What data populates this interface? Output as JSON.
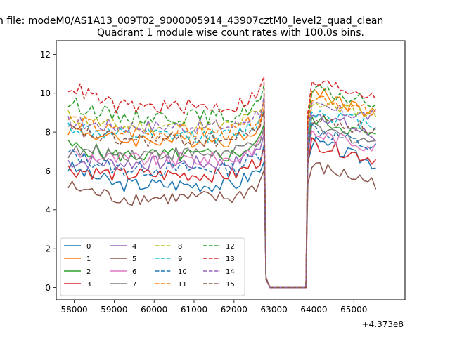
{
  "figure": {
    "suptitle": "n file: modeM0/AS1A13_009T02_9000005914_43907cztM0_level2_quad_clean",
    "title": "Quadrant 1 module wise count rates with 100.0s bins.",
    "x_offset_label": "+4.373e8"
  },
  "chart_data": {
    "type": "line",
    "title": "Quadrant 1 module wise count rates with 100.0s bins.",
    "xlabel": "",
    "ylabel": "",
    "x_offset": 437300000,
    "xlim": [
      57550,
      66280
    ],
    "ylim": [
      -0.63,
      12.7
    ],
    "x_ticks": [
      58000,
      59000,
      60000,
      61000,
      62000,
      63000,
      64000,
      65000
    ],
    "y_ticks": [
      0,
      2,
      4,
      6,
      8,
      10,
      12
    ],
    "x_tick_labels": [
      "58000",
      "59000",
      "60000",
      "61000",
      "62000",
      "63000",
      "64000",
      "65000"
    ],
    "y_tick_labels": [
      "0",
      "2",
      "4",
      "6",
      "8",
      "10",
      "12"
    ],
    "grid": false,
    "legend_position": "lower-left",
    "legend_columns": 4,
    "segments": [
      {
        "x_start": 57850,
        "x_end": 62750,
        "step": 100
      },
      {
        "x_start": 62800,
        "x_end": 63800,
        "step": 100
      },
      {
        "x_start": 63850,
        "x_end": 65600,
        "step": 100
      }
    ],
    "series": [
      {
        "name": "0",
        "color": "#1f77b4",
        "dash": "solid",
        "levels": [
          6.2,
          5.3,
          7.6,
          0.5,
          0.35
        ]
      },
      {
        "name": "1",
        "color": "#ff7f0e",
        "dash": "solid",
        "levels": [
          8.2,
          7.6,
          10.3,
          0.5,
          0.6
        ]
      },
      {
        "name": "2",
        "color": "#2ca02c",
        "dash": "solid",
        "levels": [
          7.3,
          6.8,
          8.8,
          0.5,
          0.5
        ]
      },
      {
        "name": "3",
        "color": "#d62728",
        "dash": "solid",
        "levels": [
          6.1,
          5.8,
          7.5,
          0.5,
          0.45
        ]
      },
      {
        "name": "4",
        "color": "#9467bd",
        "dash": "solid",
        "levels": [
          6.5,
          6.4,
          9.2,
          0.5,
          0.55
        ]
      },
      {
        "name": "5",
        "color": "#8c564b",
        "dash": "solid",
        "levels": [
          5.2,
          4.6,
          6.3,
          0.4,
          0.4
        ]
      },
      {
        "name": "6",
        "color": "#e377c2",
        "dash": "solid",
        "levels": [
          6.9,
          6.6,
          8.0,
          0.5,
          0.5
        ]
      },
      {
        "name": "7",
        "color": "#7f7f7f",
        "dash": "solid",
        "levels": [
          7.0,
          6.9,
          8.2,
          0.5,
          0.5
        ]
      },
      {
        "name": "8",
        "color": "#bcbd22",
        "dash": "dashed",
        "levels": [
          8.8,
          8.3,
          9.6,
          0.5,
          0.6
        ]
      },
      {
        "name": "9",
        "color": "#17becf",
        "dash": "dashed",
        "levels": [
          8.3,
          7.8,
          9.1,
          0.5,
          0.55
        ]
      },
      {
        "name": "10",
        "color": "#1f77b4",
        "dash": "dashed",
        "levels": [
          6.9,
          6.1,
          8.3,
          0.5,
          0.5
        ]
      },
      {
        "name": "11",
        "color": "#ff7f0e",
        "dash": "dashed",
        "levels": [
          8.7,
          8.0,
          10.0,
          0.5,
          0.6
        ]
      },
      {
        "name": "12",
        "color": "#2ca02c",
        "dash": "dashed",
        "levels": [
          9.5,
          8.8,
          10.2,
          0.5,
          0.6
        ]
      },
      {
        "name": "13",
        "color": "#d62728",
        "dash": "dashed",
        "levels": [
          10.4,
          9.3,
          10.6,
          0.5,
          0.6
        ]
      },
      {
        "name": "14",
        "color": "#9467bd",
        "dash": "dashed",
        "levels": [
          8.5,
          8.3,
          9.3,
          0.5,
          0.55
        ]
      },
      {
        "name": "15",
        "color": "#8c564b",
        "dash": "dashed",
        "levels": [
          8.1,
          7.6,
          8.7,
          0.5,
          0.5
        ]
      }
    ]
  }
}
